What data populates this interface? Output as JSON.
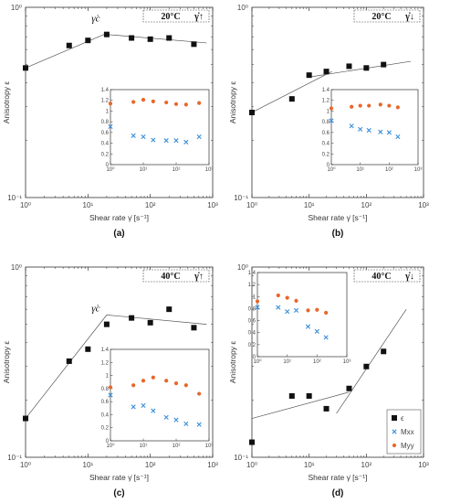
{
  "chart_data": [
    {
      "type": "scatter",
      "panel_label": "(a)",
      "condition_label": "20°C",
      "direction_label": "γ̇↑",
      "annotation": "γ̇c",
      "xlabel": "Shear rate γ̇ [s⁻¹]",
      "ylabel": "Anisotropy ε",
      "xscale": "log",
      "yscale": "log",
      "xlim": [
        1,
        1000
      ],
      "ylim": [
        0.1,
        1
      ],
      "xticks": [
        "10⁰",
        "10¹",
        "10²",
        "10³"
      ],
      "yticks": [
        "10⁻¹",
        "10⁰"
      ],
      "series": [
        {
          "marker": "square",
          "x": [
            1,
            5,
            10,
            20,
            50,
            100,
            200,
            500
          ],
          "y": [
            0.48,
            0.63,
            0.67,
            0.72,
            0.69,
            0.68,
            0.69,
            0.64
          ]
        }
      ],
      "fit_lines": [
        {
          "x": [
            1,
            20
          ],
          "y": [
            0.48,
            0.73
          ]
        },
        {
          "x": [
            20,
            800
          ],
          "y": [
            0.72,
            0.65
          ]
        }
      ],
      "inset": {
        "xscale": "log",
        "xlim": [
          1,
          1000
        ],
        "ylim": [
          0,
          1.4
        ],
        "xticks": [
          "10⁰",
          "10¹",
          "10²",
          "10³"
        ],
        "yticks": [
          "0",
          "0.2",
          "0.4",
          "0.6",
          "0.8",
          "1",
          "1.2",
          "1.4"
        ],
        "series": [
          {
            "marker": "star",
            "color": "#e8672a",
            "x": [
              1,
              5,
              10,
              20,
              50,
              100,
              200,
              500
            ],
            "y": [
              1.14,
              1.17,
              1.21,
              1.18,
              1.16,
              1.13,
              1.12,
              1.15
            ]
          },
          {
            "marker": "cross",
            "color": "#3b8fd9",
            "x": [
              1,
              5,
              10,
              20,
              50,
              100,
              200,
              500
            ],
            "y": [
              0.71,
              0.54,
              0.52,
              0.46,
              0.45,
              0.45,
              0.42,
              0.52
            ]
          }
        ]
      }
    },
    {
      "type": "scatter",
      "panel_label": "(b)",
      "condition_label": "20°C",
      "direction_label": "γ̇↓",
      "xlabel": "Shear rate γ̇ [s⁻¹]",
      "ylabel": "Anisotropy ε",
      "xscale": "log",
      "yscale": "log",
      "xlim": [
        1,
        1000
      ],
      "ylim": [
        0.1,
        1
      ],
      "xticks": [
        "10⁰",
        "10¹",
        "10²",
        "10³"
      ],
      "yticks": [
        "10⁻¹",
        "10⁰"
      ],
      "series": [
        {
          "marker": "square",
          "x": [
            1,
            5,
            10,
            20,
            50,
            100,
            200
          ],
          "y": [
            0.28,
            0.33,
            0.44,
            0.46,
            0.49,
            0.48,
            0.5
          ]
        }
      ],
      "fit_lines": [
        {
          "x": [
            1,
            25
          ],
          "y": [
            0.28,
            0.46
          ]
        },
        {
          "x": [
            10,
            600
          ],
          "y": [
            0.43,
            0.52
          ]
        }
      ],
      "inset": {
        "xscale": "log",
        "xlim": [
          1,
          1000
        ],
        "ylim": [
          0,
          1.4
        ],
        "xticks": [
          "10⁰",
          "10¹",
          "10²",
          "10³"
        ],
        "yticks": [
          "0",
          "0.2",
          "0.4",
          "0.6",
          "0.8",
          "1",
          "1.2",
          "1.4"
        ],
        "series": [
          {
            "marker": "star",
            "color": "#e8672a",
            "x": [
              1,
              5,
              10,
              20,
              50,
              100,
              200
            ],
            "y": [
              1.05,
              1.08,
              1.1,
              1.1,
              1.12,
              1.1,
              1.07
            ]
          },
          {
            "marker": "cross",
            "color": "#3b8fd9",
            "x": [
              1,
              5,
              10,
              20,
              50,
              100,
              200
            ],
            "y": [
              0.82,
              0.72,
              0.66,
              0.64,
              0.61,
              0.6,
              0.52
            ]
          }
        ]
      }
    },
    {
      "type": "scatter",
      "panel_label": "(c)",
      "condition_label": "40°C",
      "direction_label": "γ̇↑",
      "annotation": "γ̇c",
      "xlabel": "Shear rate γ̇ [s⁻¹]",
      "ylabel": "Anisotropy ε",
      "xscale": "log",
      "yscale": "log",
      "xlim": [
        1,
        1000
      ],
      "ylim": [
        0.1,
        1
      ],
      "xticks": [
        "10⁰",
        "10¹",
        "10²",
        "10³"
      ],
      "yticks": [
        "10⁻¹",
        "10⁰"
      ],
      "series": [
        {
          "marker": "square",
          "x": [
            1,
            5,
            10,
            20,
            50,
            100,
            200,
            500
          ],
          "y": [
            0.16,
            0.32,
            0.37,
            0.5,
            0.54,
            0.51,
            0.6,
            0.48
          ]
        }
      ],
      "fit_lines": [
        {
          "x": [
            1,
            20
          ],
          "y": [
            0.16,
            0.56
          ]
        },
        {
          "x": [
            20,
            800
          ],
          "y": [
            0.56,
            0.5
          ]
        }
      ],
      "inset": {
        "xscale": "log",
        "xlim": [
          1,
          1000
        ],
        "ylim": [
          0,
          1.4
        ],
        "xticks": [
          "10⁰",
          "10¹",
          "10²",
          "10³"
        ],
        "yticks": [
          "0",
          "0.2",
          "0.4",
          "0.6",
          "0.8",
          "1",
          "1.2",
          "1.4"
        ],
        "series": [
          {
            "marker": "star",
            "color": "#e8672a",
            "x": [
              1,
              5,
              10,
              20,
              50,
              100,
              200,
              500
            ],
            "y": [
              0.82,
              0.85,
              0.92,
              0.97,
              0.92,
              0.88,
              0.85,
              0.72
            ]
          },
          {
            "marker": "cross",
            "color": "#3b8fd9",
            "x": [
              1,
              5,
              10,
              20,
              50,
              100,
              200,
              500
            ],
            "y": [
              0.7,
              0.52,
              0.54,
              0.46,
              0.36,
              0.32,
              0.26,
              0.25
            ]
          }
        ]
      }
    },
    {
      "type": "scatter",
      "panel_label": "(d)",
      "condition_label": "40°C",
      "direction_label": "γ̇↓",
      "xlabel": "Shear rate γ̇ [s⁻¹]",
      "ylabel": "Anisotropy ε",
      "xscale": "log",
      "yscale": "log",
      "xlim": [
        1,
        1000
      ],
      "ylim": [
        0.1,
        1
      ],
      "xticks": [
        "10⁰",
        "10¹",
        "10²",
        "10³"
      ],
      "yticks": [
        "10⁻¹",
        "10⁰"
      ],
      "legend": {
        "position": "bottom-right",
        "entries": [
          "ϵ",
          "Mxx",
          "Myy"
        ]
      },
      "series": [
        {
          "name": "ϵ",
          "marker": "square",
          "x": [
            1,
            5,
            10,
            20,
            50,
            100,
            200
          ],
          "y": [
            0.12,
            0.21,
            0.21,
            0.18,
            0.23,
            0.3,
            0.36
          ]
        }
      ],
      "fit_lines": [
        {
          "x": [
            1,
            50
          ],
          "y": [
            0.16,
            0.22
          ]
        },
        {
          "x": [
            30,
            500
          ],
          "y": [
            0.17,
            0.6
          ]
        }
      ],
      "inset": {
        "xscale": "log",
        "xlim": [
          1,
          1000
        ],
        "ylim": [
          0,
          1.4
        ],
        "xticks": [
          "10⁰",
          "10¹",
          "10²",
          "10³"
        ],
        "yticks": [
          "0",
          "0.2",
          "0.4",
          "0.6",
          "0.8",
          "1",
          "1.2",
          "1.4"
        ],
        "series": [
          {
            "name": "Myy",
            "marker": "star",
            "color": "#e8672a",
            "x": [
              1,
              5,
              10,
              20,
              50,
              100,
              200
            ],
            "y": [
              0.92,
              1.02,
              0.98,
              0.93,
              0.77,
              0.78,
              0.73
            ]
          },
          {
            "name": "Mxx",
            "marker": "cross",
            "color": "#3b8fd9",
            "x": [
              1,
              5,
              10,
              20,
              50,
              100,
              200
            ],
            "y": [
              0.82,
              0.82,
              0.75,
              0.77,
              0.5,
              0.42,
              0.32
            ]
          }
        ]
      }
    }
  ]
}
